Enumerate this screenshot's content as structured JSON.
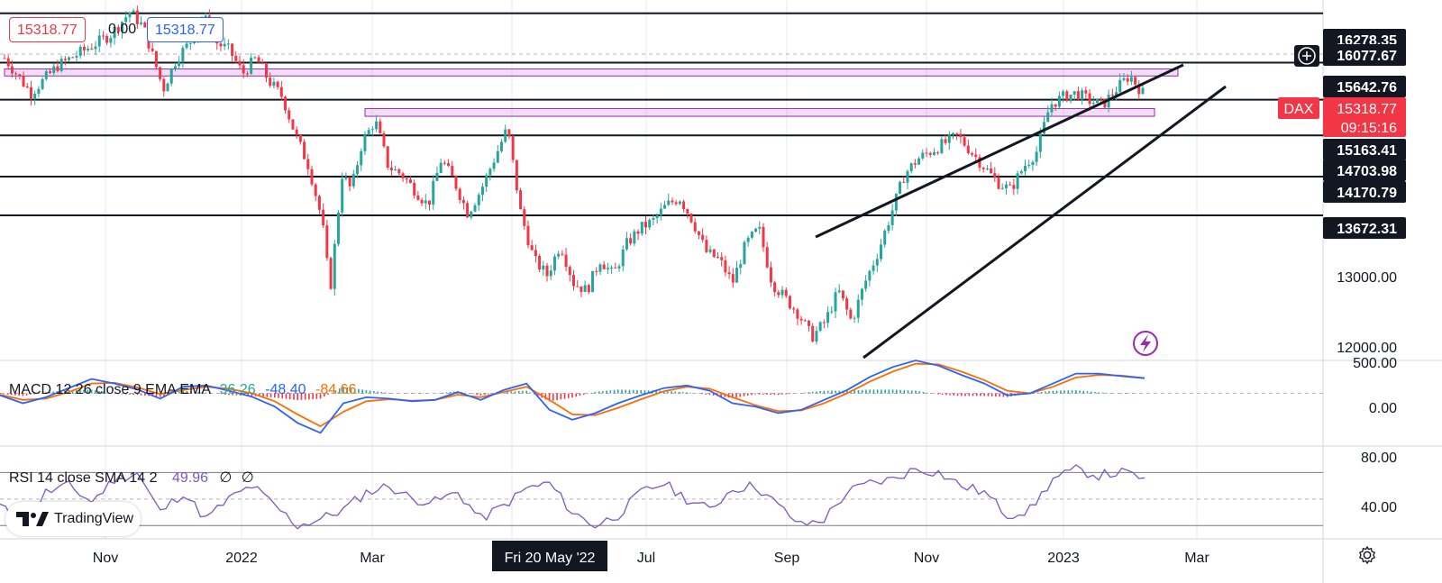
{
  "header": {
    "open_value": "15318.77",
    "change_value": "0.00",
    "close_value": "15318.77"
  },
  "macd_legend": {
    "label": "MACD 12 26 close 9 EMA EMA",
    "v1": "36.26",
    "v2": "-48.40",
    "v3": "-84.66"
  },
  "rsi_legend": {
    "label": "RSI 14 close SMA 14 2",
    "v1": "49.96",
    "v2": "∅",
    "v3": "∅"
  },
  "brand": {
    "name": "TradingView"
  },
  "colors": {
    "up": "#26a69a",
    "down": "#f23645",
    "macd": "#2962ff",
    "signal": "#ff6d00",
    "rsi": "#7e57c2",
    "zone": "#9c27b0"
  },
  "chart_data": {
    "type": "candlestick",
    "symbol": "DAX",
    "last_price": "15318.77",
    "countdown": "09:15:16",
    "y_axis_labels": [
      "16278.35",
      "16077.67",
      "15642.76",
      "15163.41",
      "14703.98",
      "14170.79",
      "13672.31",
      "13000.00",
      "12000.00"
    ],
    "x_axis_labels": [
      "Nov",
      "2022",
      "Mar",
      "Fri 20 May '22",
      "Jul",
      "Sep",
      "Nov",
      "2023",
      "Mar"
    ],
    "horizontal_levels": [
      16278.35,
      15642.76,
      15163.41,
      14703.98,
      14170.79,
      13672.31
    ],
    "ylim": [
      11800,
      16450
    ],
    "price_path": [
      [
        0,
        15700
      ],
      [
        2,
        15250
      ],
      [
        4,
        15600
      ],
      [
        6,
        15800
      ],
      [
        8,
        16000
      ],
      [
        9.5,
        16300
      ],
      [
        10.5,
        16100
      ],
      [
        12,
        15300
      ],
      [
        13,
        15700
      ],
      [
        14,
        15900
      ],
      [
        15,
        16250
      ],
      [
        16,
        15900
      ],
      [
        17,
        15800
      ],
      [
        18,
        15500
      ],
      [
        19,
        15700
      ],
      [
        20,
        15400
      ],
      [
        21,
        15200
      ],
      [
        22,
        14700
      ],
      [
        23,
        14300
      ],
      [
        24,
        13600
      ],
      [
        24.6,
        12700
      ],
      [
        25.5,
        14200
      ],
      [
        26.2,
        14000
      ],
      [
        27,
        14600
      ],
      [
        28,
        14900
      ],
      [
        29,
        14300
      ],
      [
        30,
        14200
      ],
      [
        31,
        14000
      ],
      [
        32,
        13800
      ],
      [
        33,
        14400
      ],
      [
        34,
        14100
      ],
      [
        35,
        13700
      ],
      [
        36,
        14000
      ],
      [
        37,
        14400
      ],
      [
        38,
        14800
      ],
      [
        39,
        13700
      ],
      [
        40,
        13100
      ],
      [
        41,
        12900
      ],
      [
        42,
        13300
      ],
      [
        43,
        12800
      ],
      [
        44,
        12700
      ],
      [
        45,
        13100
      ],
      [
        46,
        12900
      ],
      [
        47,
        13300
      ],
      [
        48,
        13500
      ],
      [
        49,
        13600
      ],
      [
        50,
        13800
      ],
      [
        51,
        13900
      ],
      [
        52,
        13600
      ],
      [
        53,
        13200
      ],
      [
        54,
        13100
      ],
      [
        55,
        12800
      ],
      [
        56,
        13300
      ],
      [
        57,
        13500
      ],
      [
        58,
        12800
      ],
      [
        59,
        12600
      ],
      [
        60,
        12400
      ],
      [
        61,
        12100
      ],
      [
        62,
        12300
      ],
      [
        63,
        12700
      ],
      [
        64,
        12300
      ],
      [
        65,
        12800
      ],
      [
        66,
        13200
      ],
      [
        67,
        13700
      ],
      [
        68,
        14200
      ],
      [
        69,
        14400
      ],
      [
        70,
        14500
      ],
      [
        71,
        14600
      ],
      [
        72,
        14700
      ],
      [
        73,
        14500
      ],
      [
        74,
        14300
      ],
      [
        75,
        14100
      ],
      [
        76,
        14000
      ],
      [
        77,
        14300
      ],
      [
        78,
        14500
      ],
      [
        79,
        15100
      ],
      [
        80,
        15200
      ],
      [
        81,
        15250
      ],
      [
        82,
        15150
      ],
      [
        83,
        15100
      ],
      [
        84,
        15300
      ],
      [
        85,
        15480
      ],
      [
        86,
        15250
      ]
    ],
    "macd": {
      "ylim": [
        -800,
        500
      ],
      "y_axis_labels": [
        "500.00",
        "0.00"
      ],
      "macd_line": [
        -30,
        -150,
        -60,
        80,
        220,
        150,
        60,
        -80,
        100,
        120,
        40,
        -50,
        -200,
        -450,
        -600,
        -150,
        -60,
        -80,
        -120,
        -100,
        20,
        -100,
        50,
        150,
        -250,
        -400,
        -300,
        -150,
        -30,
        80,
        120,
        40,
        -150,
        -200,
        -300,
        -250,
        -100,
        50,
        250,
        400,
        500,
        420,
        280,
        150,
        -30,
        0,
        150,
        300,
        300,
        260,
        230
      ],
      "signal_line": [
        -20,
        -100,
        -80,
        20,
        150,
        160,
        90,
        -10,
        50,
        100,
        70,
        0,
        -120,
        -320,
        -500,
        -280,
        -120,
        -90,
        -110,
        -100,
        -20,
        -60,
        20,
        100,
        -100,
        -320,
        -330,
        -220,
        -90,
        30,
        100,
        70,
        -60,
        -180,
        -270,
        -260,
        -150,
        0,
        180,
        330,
        450,
        440,
        330,
        200,
        40,
        0,
        100,
        240,
        280,
        270,
        230
      ]
    },
    "rsi": {
      "ylim": [
        20,
        90
      ],
      "y_axis_labels": [
        "80.00",
        "40.00"
      ],
      "upper": 70,
      "middle": 50,
      "lower": 30,
      "values": [
        45,
        30,
        55,
        60,
        48,
        65,
        70,
        40,
        55,
        35,
        50,
        60,
        45,
        30,
        35,
        42,
        55,
        60,
        50,
        48,
        55,
        35,
        45,
        58,
        62,
        40,
        30,
        38,
        55,
        62,
        50,
        42,
        58,
        60,
        45,
        30,
        35,
        55,
        62,
        65,
        73,
        70,
        60,
        55,
        38,
        42,
        65,
        72,
        68,
        70,
        66
      ]
    }
  }
}
